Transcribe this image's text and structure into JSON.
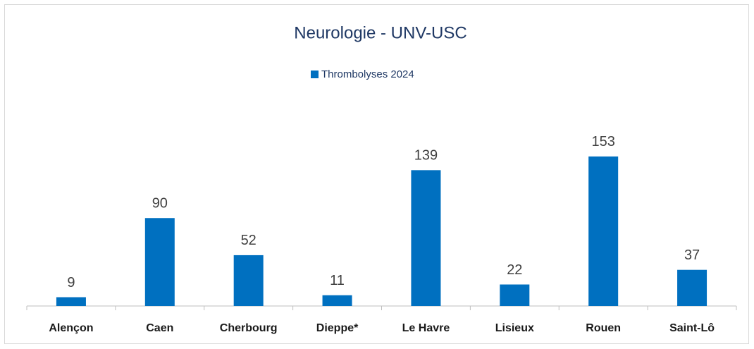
{
  "chart_data": {
    "type": "bar",
    "title": "Neurologie - UNV-USC",
    "categories": [
      "Alençon",
      "Caen",
      "Cherbourg",
      "Dieppe*",
      "Le Havre",
      "Lisieux",
      "Rouen",
      "Saint-Lô"
    ],
    "series": [
      {
        "name": "Thrombolyses 2024",
        "color": "#0070c0",
        "values": [
          9,
          90,
          52,
          11,
          139,
          22,
          153,
          37
        ]
      }
    ],
    "ylim": [
      0,
      180
    ],
    "legend": "top"
  }
}
